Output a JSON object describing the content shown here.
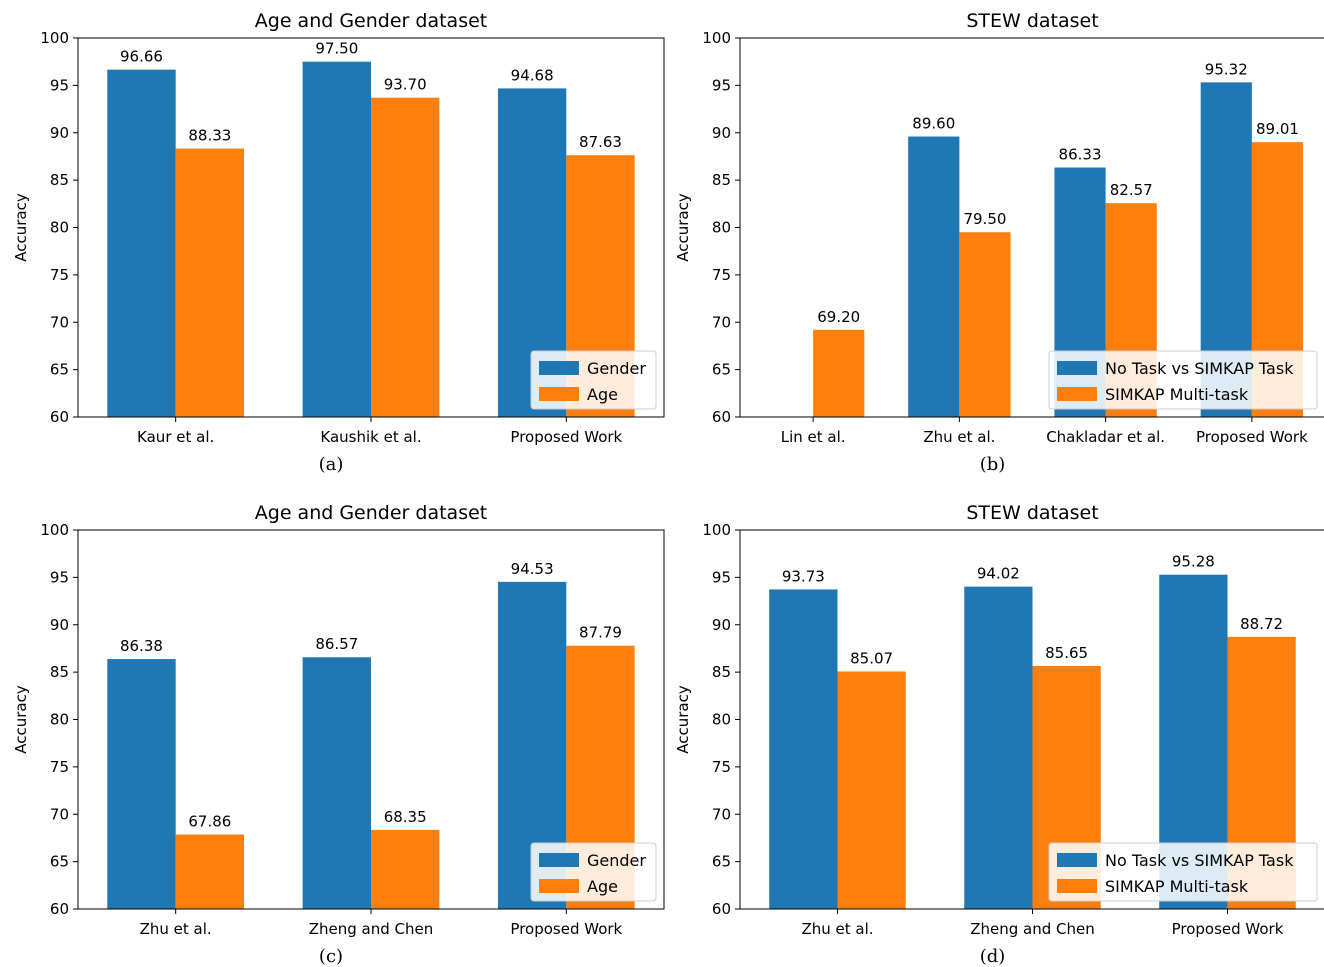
{
  "colors": {
    "series0": "#1f77b4",
    "series1": "#ff7f0e"
  },
  "chart_data": [
    {
      "type": "bar",
      "title": "Age and Gender dataset",
      "caption": "(a)",
      "ylabel": "Accuracy",
      "xlabel": "",
      "ylim": [
        60,
        100
      ],
      "yticks": [
        60,
        65,
        70,
        75,
        80,
        85,
        90,
        95,
        100
      ],
      "categories": [
        "Kaur et al.",
        "Kaushik et al.",
        "Proposed Work"
      ],
      "series": [
        {
          "name": "Gender",
          "values": [
            96.66,
            97.5,
            94.68
          ],
          "labels": [
            "96.66",
            "97.50",
            "94.68"
          ]
        },
        {
          "name": "Age",
          "values": [
            88.33,
            93.7,
            87.63
          ],
          "labels": [
            "88.33",
            "93.70",
            "87.63"
          ]
        }
      ],
      "legend": "lower-right",
      "grid": false
    },
    {
      "type": "bar",
      "title": "STEW dataset",
      "caption": "(b)",
      "ylabel": "Accuracy",
      "xlabel": "",
      "ylim": [
        60,
        100
      ],
      "yticks": [
        60,
        65,
        70,
        75,
        80,
        85,
        90,
        95,
        100
      ],
      "categories": [
        "Lin et al.",
        "Zhu et al.",
        "Chakladar et al.",
        "Proposed Work"
      ],
      "series": [
        {
          "name": "No Task vs SIMKAP Task",
          "values": [
            null,
            89.6,
            86.33,
            95.32
          ],
          "labels": [
            "",
            "89.60",
            "86.33",
            "95.32"
          ]
        },
        {
          "name": "SIMKAP Multi-task",
          "values": [
            69.2,
            79.5,
            82.57,
            89.01
          ],
          "labels": [
            "69.20",
            "79.50",
            "82.57",
            "89.01"
          ]
        }
      ],
      "legend": "lower-right",
      "grid": false
    },
    {
      "type": "bar",
      "title": "Age and Gender dataset",
      "caption": "(c)",
      "ylabel": "Accuracy",
      "xlabel": "",
      "ylim": [
        60,
        100
      ],
      "yticks": [
        60,
        65,
        70,
        75,
        80,
        85,
        90,
        95,
        100
      ],
      "categories": [
        "Zhu et al.",
        "Zheng and Chen",
        "Proposed Work"
      ],
      "series": [
        {
          "name": "Gender",
          "values": [
            86.38,
            86.57,
            94.53
          ],
          "labels": [
            "86.38",
            "86.57",
            "94.53"
          ]
        },
        {
          "name": "Age",
          "values": [
            67.86,
            68.35,
            87.79
          ],
          "labels": [
            "67.86",
            "68.35",
            "87.79"
          ]
        }
      ],
      "legend": "lower-right",
      "grid": false
    },
    {
      "type": "bar",
      "title": "STEW dataset",
      "caption": "(d)",
      "ylabel": "Accuracy",
      "xlabel": "",
      "ylim": [
        60,
        100
      ],
      "yticks": [
        60,
        65,
        70,
        75,
        80,
        85,
        90,
        95,
        100
      ],
      "categories": [
        "Zhu et al.",
        "Zheng and Chen",
        "Proposed Work"
      ],
      "series": [
        {
          "name": "No Task vs SIMKAP Task",
          "values": [
            93.73,
            94.02,
            95.28
          ],
          "labels": [
            "93.73",
            "94.02",
            "95.28"
          ]
        },
        {
          "name": "SIMKAP Multi-task",
          "values": [
            85.07,
            85.65,
            88.72
          ],
          "labels": [
            "85.07",
            "85.65",
            "88.72"
          ]
        }
      ],
      "legend": "lower-right",
      "grid": false
    }
  ]
}
